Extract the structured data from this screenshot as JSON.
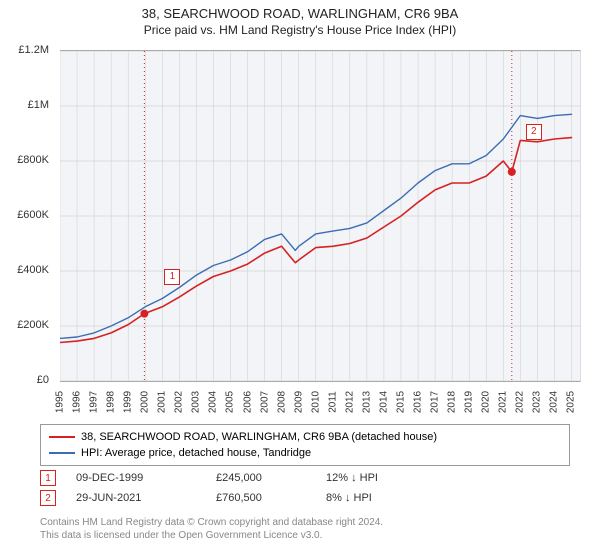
{
  "title": {
    "main": "38, SEARCHWOOD ROAD, WARLINGHAM, CR6 9BA",
    "sub": "Price paid vs. HM Land Registry's House Price Index (HPI)"
  },
  "chart": {
    "type": "line",
    "background_color": "#f2f4f7",
    "page_color": "#ffffff",
    "grid_color": "#dddddd",
    "x_vline_color": "#cccccc",
    "axis_color": "#aaaaaa",
    "y": {
      "min": 0,
      "max": 1200000,
      "ticks": [
        0,
        200000,
        400000,
        600000,
        800000,
        1000000,
        1200000
      ],
      "labels": [
        "£0",
        "£200K",
        "£400K",
        "£600K",
        "£800K",
        "£1M",
        "£1.2M"
      ],
      "fontsize": 11,
      "color": "#333333"
    },
    "x": {
      "min": 1995,
      "max": 2025.5,
      "ticks": [
        1995,
        1996,
        1997,
        1998,
        1999,
        2000,
        2001,
        2002,
        2003,
        2004,
        2005,
        2006,
        2007,
        2008,
        2009,
        2010,
        2011,
        2012,
        2013,
        2014,
        2015,
        2016,
        2017,
        2018,
        2019,
        2020,
        2021,
        2022,
        2023,
        2024,
        2025
      ],
      "fontsize": 10,
      "color": "#333333",
      "rotation": -90
    },
    "series": [
      {
        "name": "price_paid",
        "label": "38, SEARCHWOOD ROAD, WARLINGHAM, CR6 9BA (detached house)",
        "color": "#d62222",
        "line_width": 1.6,
        "x": [
          1995,
          1996,
          1997,
          1998,
          1999,
          1999.95,
          2001,
          2002,
          2003,
          2004,
          2005,
          2006,
          2007,
          2008,
          2008.8,
          2009,
          2010,
          2011,
          2012,
          2013,
          2014,
          2015,
          2016,
          2017,
          2018,
          2019,
          2020,
          2021,
          2021.5,
          2022,
          2023,
          2024,
          2025
        ],
        "y": [
          140000,
          145000,
          155000,
          175000,
          205000,
          245000,
          270000,
          305000,
          345000,
          380000,
          400000,
          425000,
          465000,
          490000,
          430000,
          440000,
          485000,
          490000,
          500000,
          520000,
          560000,
          600000,
          650000,
          695000,
          720000,
          720000,
          745000,
          800000,
          760500,
          875000,
          870000,
          880000,
          885000
        ]
      },
      {
        "name": "hpi",
        "label": "HPI: Average price, detached house, Tandridge",
        "color": "#3b6db3",
        "line_width": 1.4,
        "x": [
          1995,
          1996,
          1997,
          1998,
          1999,
          2000,
          2001,
          2002,
          2003,
          2004,
          2005,
          2006,
          2007,
          2008,
          2008.8,
          2009,
          2010,
          2011,
          2012,
          2013,
          2014,
          2015,
          2016,
          2017,
          2018,
          2019,
          2020,
          2021,
          2022,
          2023,
          2024,
          2025
        ],
        "y": [
          155000,
          160000,
          175000,
          200000,
          230000,
          270000,
          300000,
          340000,
          385000,
          420000,
          440000,
          470000,
          515000,
          535000,
          475000,
          490000,
          535000,
          545000,
          555000,
          575000,
          620000,
          665000,
          720000,
          765000,
          790000,
          790000,
          820000,
          880000,
          965000,
          955000,
          965000,
          970000
        ]
      }
    ],
    "markers": [
      {
        "id": "1",
        "x": 1999.95,
        "y": 245000,
        "point_color": "#d62222",
        "box_border": "#d62222",
        "box_text_color": "#d62222",
        "vline_color": "#d62222",
        "vline_dash": "1,3",
        "box_dx": 20,
        "box_dy": -45
      },
      {
        "id": "2",
        "x": 2021.5,
        "y": 760500,
        "point_color": "#d62222",
        "box_border": "#d62222",
        "box_text_color": "#d62222",
        "vline_color": "#d62222",
        "vline_dash": "1,3",
        "box_dx": 14,
        "box_dy": -48
      }
    ]
  },
  "legend": {
    "border_color": "#999999",
    "fontsize": 11,
    "items": [
      {
        "color": "#d62222",
        "label": "38, SEARCHWOOD ROAD, WARLINGHAM, CR6 9BA (detached house)"
      },
      {
        "color": "#3b6db3",
        "label": "HPI: Average price, detached house, Tandridge"
      }
    ]
  },
  "sales": [
    {
      "marker": "1",
      "marker_border": "#d62222",
      "marker_text_color": "#d62222",
      "date": "09-DEC-1999",
      "price": "£245,000",
      "diff": "12% ↓ HPI"
    },
    {
      "marker": "2",
      "marker_border": "#d62222",
      "marker_text_color": "#d62222",
      "date": "29-JUN-2021",
      "price": "£760,500",
      "diff": "8% ↓ HPI"
    }
  ],
  "attrib": {
    "line1": "Contains HM Land Registry data © Crown copyright and database right 2024.",
    "line2": "This data is licensed under the Open Government Licence v3.0.",
    "color": "#888888",
    "fontsize": 10
  }
}
